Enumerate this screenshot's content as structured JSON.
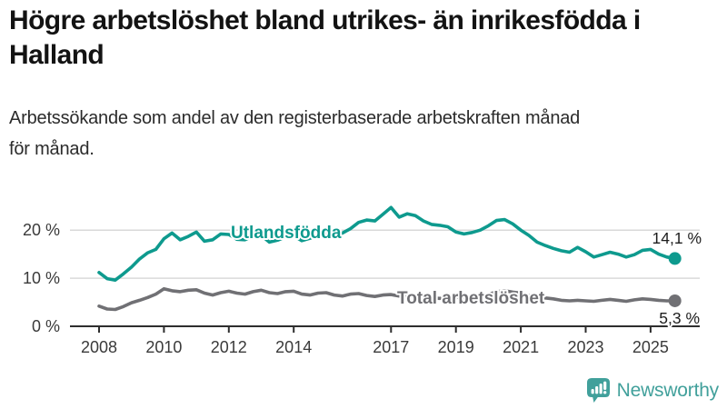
{
  "header": {
    "title": "Högre arbetslöshet bland utrikes- än inrikesfödda i Halland",
    "title_lines": [
      "Högre arbetslöshet bland utrikes- än inrikesfödda i",
      "Halland"
    ],
    "subtitle": "Arbetssökande som andel av den registerbaserade arbetskraften månad för månad.",
    "subtitle_lines": [
      "Arbetssökande som andel av den registerbaserade arbetskraften månad",
      "för månad."
    ]
  },
  "chart_data": {
    "type": "line",
    "title": "Högre arbetslöshet bland utrikes- än inrikesfödda i Halland",
    "subtitle": "Arbetssökande som andel av den registerbaserade arbetskraften månad för månad.",
    "unit": "%",
    "grid": "horizontal",
    "legend_position": "inline-labels",
    "x_range": [
      2008,
      2025.75
    ],
    "ylim": [
      0,
      25
    ],
    "x_ticks": [
      2008,
      2010,
      2012,
      2014,
      2017,
      2019,
      2021,
      2023,
      2025
    ],
    "x_tick_labels": [
      "2008",
      "2010",
      "2012",
      "2014",
      "2017",
      "2019",
      "2021",
      "2023",
      "2025"
    ],
    "y_tick_values": [
      0,
      10,
      20
    ],
    "y_tick_labels": [
      "0 %",
      "10 %",
      "20 %"
    ],
    "x_start": 2008,
    "x_step": 0.25,
    "series": [
      {
        "name": "Utlandsfödda",
        "color": "#0e9a8e",
        "end_value": 14.1,
        "end_label": "14,1 %",
        "values": [
          11.2,
          9.9,
          9.6,
          10.9,
          12.3,
          14.0,
          15.3,
          16.0,
          18.2,
          19.4,
          18.0,
          18.7,
          19.6,
          17.7,
          18.0,
          19.2,
          19.1,
          18.1,
          18.0,
          18.8,
          18.9,
          17.5,
          17.9,
          18.6,
          18.8,
          17.8,
          18.3,
          19.0,
          19.5,
          18.9,
          19.4,
          20.3,
          21.6,
          22.1,
          21.9,
          23.3,
          24.7,
          22.7,
          23.4,
          23.0,
          21.9,
          21.2,
          21.0,
          20.7,
          19.6,
          19.2,
          19.5,
          20.0,
          20.9,
          22.0,
          22.2,
          21.3,
          20.0,
          18.9,
          17.5,
          16.8,
          16.2,
          15.7,
          15.4,
          16.4,
          15.5,
          14.4,
          14.9,
          15.4,
          15.0,
          14.4,
          14.9,
          15.8,
          16.0,
          15.0,
          14.4,
          14.1
        ]
      },
      {
        "name": "Total arbetslöshet",
        "color": "#707074",
        "end_value": 5.3,
        "end_label": "5,3 %",
        "values": [
          4.2,
          3.6,
          3.5,
          4.1,
          4.9,
          5.4,
          6.0,
          6.7,
          7.8,
          7.4,
          7.2,
          7.5,
          7.6,
          6.9,
          6.5,
          7.0,
          7.3,
          6.9,
          6.7,
          7.2,
          7.5,
          7.0,
          6.8,
          7.2,
          7.3,
          6.7,
          6.5,
          6.9,
          7.0,
          6.5,
          6.3,
          6.7,
          6.8,
          6.4,
          6.2,
          6.5,
          6.6,
          6.3,
          6.1,
          6.4,
          6.2,
          5.9,
          5.8,
          6.0,
          6.1,
          6.0,
          5.9,
          6.2,
          6.6,
          7.2,
          7.4,
          7.1,
          6.9,
          6.4,
          6.1,
          5.9,
          5.7,
          5.4,
          5.3,
          5.4,
          5.3,
          5.2,
          5.4,
          5.6,
          5.4,
          5.2,
          5.5,
          5.7,
          5.6,
          5.4,
          5.3,
          5.3
        ]
      }
    ]
  },
  "colors": {
    "accent_teal": "#0e9a8e",
    "series_gray": "#707074",
    "gridline": "#d9d9d9",
    "axis": "#2e2e2e",
    "brand_teal": "#41a09b"
  },
  "footer": {
    "brand_name": "Newsworthy",
    "brand_icon": "bar-chart-speech-bubble-icon"
  }
}
